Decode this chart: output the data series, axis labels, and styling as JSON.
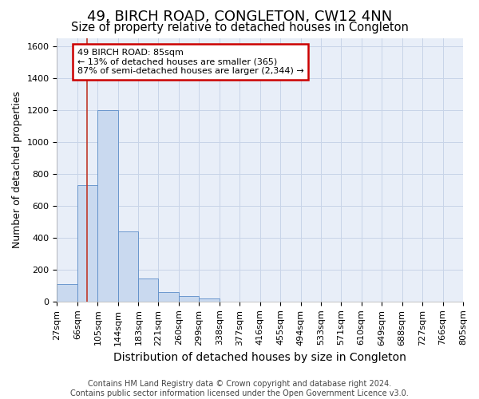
{
  "title1": "49, BIRCH ROAD, CONGLETON, CW12 4NN",
  "title2": "Size of property relative to detached houses in Congleton",
  "xlabel": "Distribution of detached houses by size in Congleton",
  "ylabel": "Number of detached properties",
  "footer1": "Contains HM Land Registry data © Crown copyright and database right 2024.",
  "footer2": "Contains public sector information licensed under the Open Government Licence v3.0.",
  "bin_edges": [
    27,
    66,
    105,
    144,
    183,
    221,
    260,
    299,
    338,
    377,
    416,
    455,
    494,
    533,
    571,
    610,
    649,
    688,
    727,
    766,
    805
  ],
  "bar_values": [
    110,
    730,
    1200,
    440,
    145,
    58,
    32,
    18,
    0,
    0,
    0,
    0,
    0,
    0,
    0,
    0,
    0,
    0,
    0,
    0
  ],
  "bar_color": "#c9d9ef",
  "bar_edge_color": "#5b8cc8",
  "grid_color": "#c8d4e8",
  "annotation_line1": "49 BIRCH ROAD: 85sqm",
  "annotation_line2": "← 13% of detached houses are smaller (365)",
  "annotation_line3": "87% of semi-detached houses are larger (2,344) →",
  "vline_x": 85,
  "vline_color": "#c0392b",
  "ylim": [
    0,
    1650
  ],
  "bg_color": "#e8eef8",
  "title_fontsize": 13,
  "subtitle_fontsize": 10.5,
  "ylabel_fontsize": 9,
  "xlabel_fontsize": 10,
  "tick_fontsize": 8,
  "footer_fontsize": 7
}
